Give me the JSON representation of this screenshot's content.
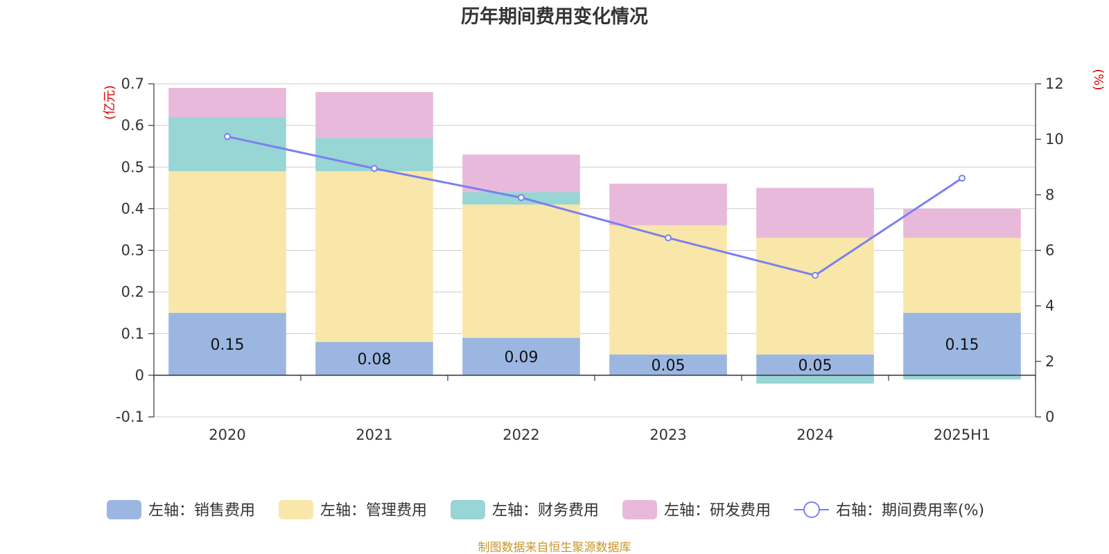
{
  "chart_data": {
    "type": "bar",
    "stacked": true,
    "title": "历年期间费用变化情况",
    "categories": [
      "2020",
      "2021",
      "2022",
      "2023",
      "2024",
      "2025H1"
    ],
    "left_axis": {
      "unit": "(亿元)",
      "range": [
        -0.1,
        0.7
      ],
      "ticks": [
        "-0.1",
        "0",
        "0.1",
        "0.2",
        "0.3",
        "0.4",
        "0.5",
        "0.6",
        "0.7"
      ],
      "tick_values": [
        -0.1,
        0,
        0.1,
        0.2,
        0.3,
        0.4,
        0.5,
        0.6,
        0.7
      ]
    },
    "right_axis": {
      "unit": "(%)",
      "range": [
        0,
        12
      ],
      "ticks": [
        "0",
        "2",
        "4",
        "6",
        "8",
        "10",
        "12"
      ],
      "tick_values": [
        0,
        2,
        4,
        6,
        8,
        10,
        12
      ]
    },
    "series": [
      {
        "name": "左轴：销售费用",
        "color": "#9bb7e1",
        "axis": "left",
        "values": [
          0.15,
          0.08,
          0.09,
          0.05,
          0.05,
          0.15
        ],
        "labels": [
          "0.15",
          "0.08",
          "0.09",
          "0.05",
          "0.05",
          "0.15"
        ]
      },
      {
        "name": "左轴：管理费用",
        "color": "#f8e7a8",
        "axis": "left",
        "values": [
          0.34,
          0.41,
          0.32,
          0.31,
          0.28,
          0.18
        ]
      },
      {
        "name": "左轴：财务费用",
        "color": "#98d5d5",
        "axis": "left",
        "values": [
          0.13,
          0.08,
          0.03,
          0.0,
          -0.02,
          -0.01
        ]
      },
      {
        "name": "左轴：研发费用",
        "color": "#e8b9da",
        "axis": "left",
        "values": [
          0.07,
          0.11,
          0.09,
          0.1,
          0.12,
          0.07
        ]
      }
    ],
    "line": {
      "name": "右轴：期间费用率(%)",
      "color": "#7b7ff0",
      "axis": "right",
      "values": [
        10.1,
        8.95,
        7.9,
        6.45,
        5.1,
        8.6
      ]
    },
    "grid": true,
    "legend_position": "bottom"
  },
  "source_note": "制图数据来自恒生聚源数据库"
}
